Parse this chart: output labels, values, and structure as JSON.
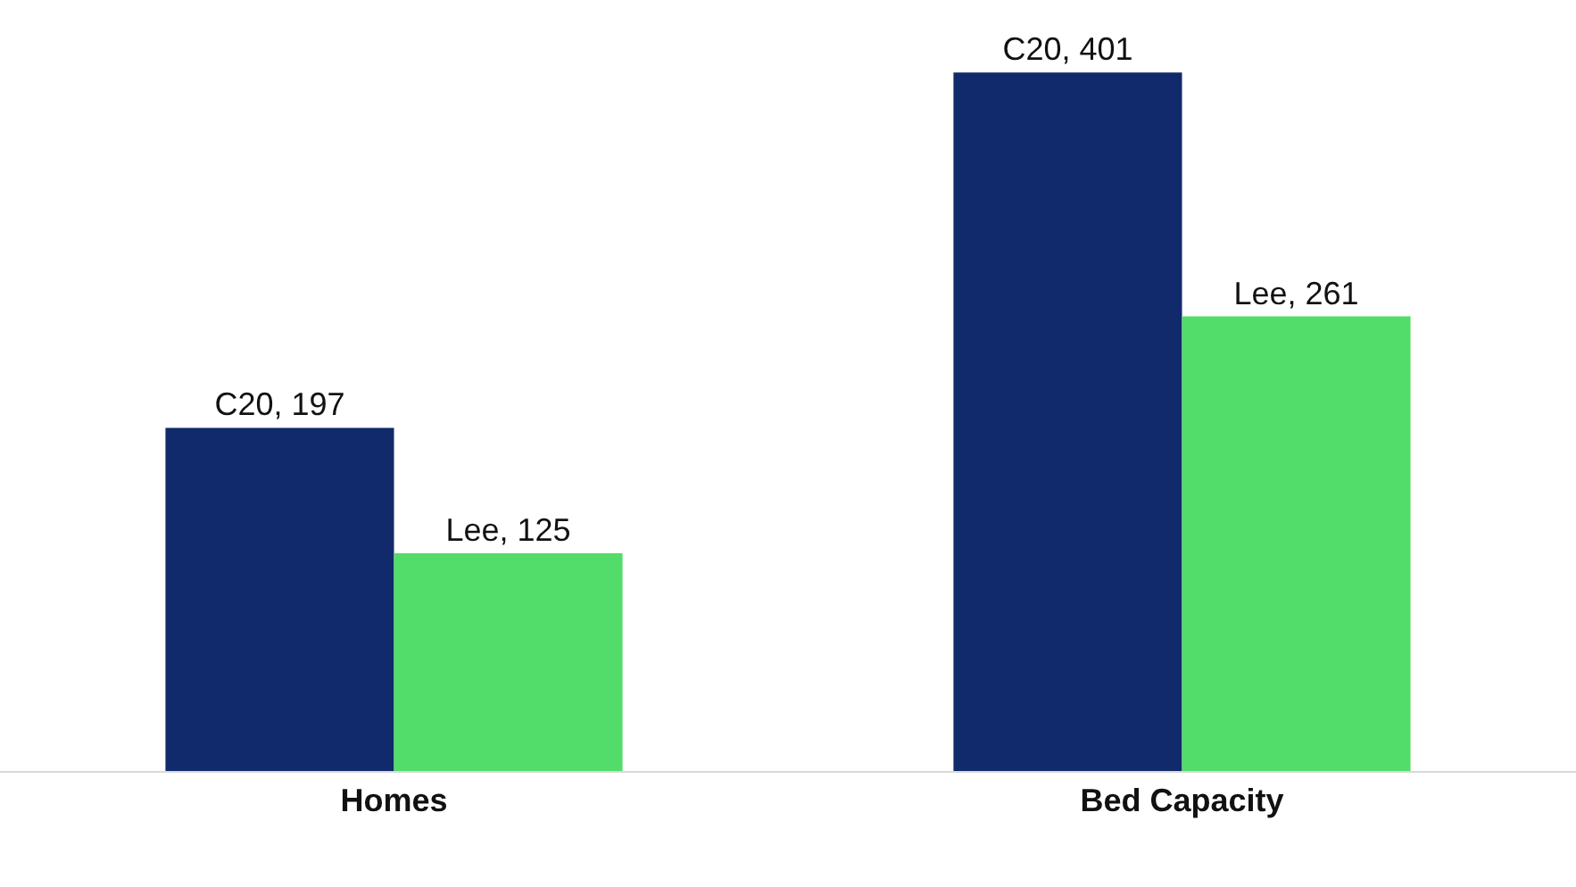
{
  "chart_data": {
    "type": "bar",
    "categories": [
      "Homes",
      "Bed Capacity"
    ],
    "series": [
      {
        "color": "#102a6b",
        "values": [
          197,
          401
        ],
        "value_labels": [
          "C20, 197",
          "C20, 401"
        ]
      },
      {
        "color": "#52dc6a",
        "values": [
          125,
          261
        ],
        "value_labels": [
          "Lee, 125",
          "Lee, 261"
        ]
      }
    ],
    "tick_labels": "x",
    "legend": false
  }
}
